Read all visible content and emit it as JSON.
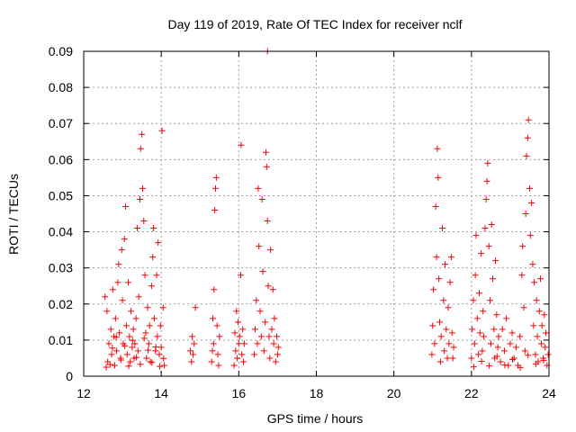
{
  "chart_data": {
    "type": "scatter",
    "title": "Day 119 of 2019, Rate Of TEC Index for receiver nclf",
    "xlabel": "GPS time / hours",
    "ylabel": "ROTI / TECUs",
    "xlim": [
      12,
      24
    ],
    "ylim": [
      0,
      0.09
    ],
    "x_ticks": [
      12,
      14,
      16,
      18,
      20,
      22,
      24
    ],
    "x_tick_labels": [
      "12",
      "14",
      "16",
      "18",
      "20",
      "22",
      "24"
    ],
    "y_ticks": [
      0,
      0.01,
      0.02,
      0.03,
      0.04,
      0.05,
      0.06,
      0.07,
      0.08,
      0.09
    ],
    "y_tick_labels": [
      "0",
      "0.01",
      "0.02",
      "0.03",
      "0.04",
      "0.05",
      "0.06",
      "0.07",
      "0.08",
      "0.09"
    ],
    "grid": true,
    "marker": "+",
    "color": "#ff0000",
    "series": [
      {
        "name": "ROTI",
        "points": [
          [
            12.55,
            0.022
          ],
          [
            12.6,
            0.018
          ],
          [
            12.62,
            0.004
          ],
          [
            12.65,
            0.009
          ],
          [
            12.7,
            0.013
          ],
          [
            12.72,
            0.006
          ],
          [
            12.75,
            0.024
          ],
          [
            12.78,
            0.011
          ],
          [
            12.8,
            0.003
          ],
          [
            12.82,
            0.016
          ],
          [
            12.85,
            0.007
          ],
          [
            12.88,
            0.026
          ],
          [
            12.9,
            0.031
          ],
          [
            12.92,
            0.012
          ],
          [
            12.95,
            0.005
          ],
          [
            12.98,
            0.035
          ],
          [
            13.0,
            0.021
          ],
          [
            13.02,
            0.009
          ],
          [
            13.05,
            0.038
          ],
          [
            13.08,
            0.047
          ],
          [
            13.1,
            0.014
          ],
          [
            13.12,
            0.006
          ],
          [
            13.15,
            0.026
          ],
          [
            13.18,
            0.011
          ],
          [
            13.2,
            0.004
          ],
          [
            13.22,
            0.018
          ],
          [
            13.25,
            0.008
          ],
          [
            13.28,
            0.013
          ],
          [
            13.3,
            0.005
          ],
          [
            13.32,
            0.009
          ],
          [
            13.35,
            0.016
          ],
          [
            13.38,
            0.041
          ],
          [
            13.4,
            0.007
          ],
          [
            13.42,
            0.022
          ],
          [
            13.45,
            0.049
          ],
          [
            13.47,
            0.063
          ],
          [
            13.5,
            0.067
          ],
          [
            13.52,
            0.052
          ],
          [
            13.55,
            0.043
          ],
          [
            13.58,
            0.028
          ],
          [
            13.6,
            0.012
          ],
          [
            13.62,
            0.005
          ],
          [
            13.65,
            0.019
          ],
          [
            13.68,
            0.009
          ],
          [
            13.7,
            0.014
          ],
          [
            13.72,
            0.004
          ],
          [
            13.75,
            0.025
          ],
          [
            13.78,
            0.033
          ],
          [
            13.8,
            0.041
          ],
          [
            13.82,
            0.016
          ],
          [
            13.85,
            0.007
          ],
          [
            13.88,
            0.028
          ],
          [
            13.9,
            0.011
          ],
          [
            13.92,
            0.037
          ],
          [
            13.95,
            0.006
          ],
          [
            13.98,
            0.014
          ],
          [
            14.0,
            0.008
          ],
          [
            14.02,
            0.068
          ],
          [
            14.05,
            0.019
          ],
          [
            14.08,
            0.003
          ],
          [
            12.58,
            0.0025
          ],
          [
            12.68,
            0.0032
          ],
          [
            12.74,
            0.0078
          ],
          [
            12.84,
            0.0108
          ],
          [
            12.96,
            0.0045
          ],
          [
            13.06,
            0.0084
          ],
          [
            13.16,
            0.0028
          ],
          [
            13.26,
            0.0099
          ],
          [
            13.36,
            0.0052
          ],
          [
            13.46,
            0.0033
          ],
          [
            13.56,
            0.0105
          ],
          [
            13.66,
            0.0072
          ],
          [
            13.76,
            0.0038
          ],
          [
            13.86,
            0.0081
          ],
          [
            13.96,
            0.0027
          ],
          [
            14.06,
            0.0049
          ],
          [
            14.75,
            0.007
          ],
          [
            14.78,
            0.004
          ],
          [
            14.8,
            0.011
          ],
          [
            14.82,
            0.006
          ],
          [
            14.85,
            0.009
          ],
          [
            14.88,
            0.019
          ],
          [
            15.3,
            0.004
          ],
          [
            15.32,
            0.007
          ],
          [
            15.33,
            0.016
          ],
          [
            15.35,
            0.009
          ],
          [
            15.36,
            0.024
          ],
          [
            15.38,
            0.046
          ],
          [
            15.4,
            0.052
          ],
          [
            15.42,
            0.055
          ],
          [
            15.44,
            0.014
          ],
          [
            15.46,
            0.006
          ],
          [
            15.48,
            0.003
          ],
          [
            15.5,
            0.011
          ],
          [
            15.88,
            0.003
          ],
          [
            15.9,
            0.012
          ],
          [
            15.92,
            0.007
          ],
          [
            15.94,
            0.018
          ],
          [
            15.96,
            0.005
          ],
          [
            15.98,
            0.015
          ],
          [
            16.0,
            0.009
          ],
          [
            16.02,
            0.011
          ],
          [
            16.05,
            0.028
          ],
          [
            16.06,
            0.064
          ],
          [
            16.08,
            0.006
          ],
          [
            16.1,
            0.013
          ],
          [
            16.12,
            0.004
          ],
          [
            16.14,
            0.009
          ],
          [
            16.4,
            0.006
          ],
          [
            16.42,
            0.013
          ],
          [
            16.45,
            0.021
          ],
          [
            16.48,
            0.009
          ],
          [
            16.5,
            0.052
          ],
          [
            16.52,
            0.036
          ],
          [
            16.55,
            0.018
          ],
          [
            16.58,
            0.011
          ],
          [
            16.6,
            0.049
          ],
          [
            16.62,
            0.029
          ],
          [
            16.65,
            0.007
          ],
          [
            16.68,
            0.015
          ],
          [
            16.7,
            0.062
          ],
          [
            16.72,
            0.058
          ],
          [
            16.74,
            0.043
          ],
          [
            16.76,
            0.025
          ],
          [
            16.78,
            0.011
          ],
          [
            16.8,
            0.005
          ],
          [
            16.82,
            0.035
          ],
          [
            16.85,
            0.013
          ],
          [
            16.88,
            0.024
          ],
          [
            16.9,
            0.009
          ],
          [
            16.92,
            0.016
          ],
          [
            16.95,
            0.004
          ],
          [
            16.98,
            0.011
          ],
          [
            17.0,
            0.006
          ],
          [
            17.02,
            0.008
          ],
          [
            16.74,
            0.09
          ],
          [
            20.98,
            0.006
          ],
          [
            21.0,
            0.014
          ],
          [
            21.02,
            0.024
          ],
          [
            21.05,
            0.009
          ],
          [
            21.08,
            0.047
          ],
          [
            21.1,
            0.033
          ],
          [
            21.12,
            0.063
          ],
          [
            21.14,
            0.055
          ],
          [
            21.16,
            0.027
          ],
          [
            21.18,
            0.015
          ],
          [
            21.2,
            0.004
          ],
          [
            21.22,
            0.011
          ],
          [
            21.25,
            0.041
          ],
          [
            21.28,
            0.021
          ],
          [
            21.3,
            0.007
          ],
          [
            21.32,
            0.031
          ],
          [
            21.35,
            0.013
          ],
          [
            21.38,
            0.005
          ],
          [
            21.4,
            0.019
          ],
          [
            21.42,
            0.009
          ],
          [
            21.45,
            0.026
          ],
          [
            21.48,
            0.033
          ],
          [
            21.5,
            0.012
          ],
          [
            21.52,
            0.005
          ],
          [
            21.54,
            0.008
          ],
          [
            22.0,
            0.005
          ],
          [
            22.02,
            0.013
          ],
          [
            22.05,
            0.021
          ],
          [
            22.08,
            0.009
          ],
          [
            22.1,
            0.028
          ],
          [
            22.12,
            0.039
          ],
          [
            22.15,
            0.016
          ],
          [
            22.18,
            0.006
          ],
          [
            22.2,
            0.023
          ],
          [
            22.22,
            0.012
          ],
          [
            22.25,
            0.034
          ],
          [
            22.28,
            0.007
          ],
          [
            22.3,
            0.018
          ],
          [
            22.32,
            0.011
          ],
          [
            22.35,
            0.041
          ],
          [
            22.38,
            0.049
          ],
          [
            22.4,
            0.054
          ],
          [
            22.42,
            0.059
          ],
          [
            22.45,
            0.036
          ],
          [
            22.48,
            0.021
          ],
          [
            22.5,
            0.009
          ],
          [
            22.52,
            0.042
          ],
          [
            22.55,
            0.027
          ],
          [
            22.58,
            0.013
          ],
          [
            22.6,
            0.005
          ],
          [
            22.62,
            0.032
          ],
          [
            22.65,
            0.017
          ],
          [
            22.68,
            0.008
          ],
          [
            22.7,
            0.011
          ],
          [
            22.75,
            0.004
          ],
          [
            22.8,
            0.013
          ],
          [
            22.85,
            0.007
          ],
          [
            22.9,
            0.016
          ],
          [
            22.95,
            0.003
          ],
          [
            23.0,
            0.009
          ],
          [
            23.05,
            0.012
          ],
          [
            23.1,
            0.005
          ],
          [
            23.15,
            0.008
          ],
          [
            23.2,
            0.003
          ],
          [
            23.25,
            0.011
          ],
          [
            23.3,
            0.028
          ],
          [
            23.32,
            0.036
          ],
          [
            23.35,
            0.019
          ],
          [
            23.38,
            0.007
          ],
          [
            23.4,
            0.045
          ],
          [
            23.42,
            0.061
          ],
          [
            23.45,
            0.066
          ],
          [
            23.47,
            0.071
          ],
          [
            23.5,
            0.052
          ],
          [
            23.52,
            0.039
          ],
          [
            23.55,
            0.048
          ],
          [
            23.58,
            0.031
          ],
          [
            23.6,
            0.014
          ],
          [
            23.62,
            0.026
          ],
          [
            23.65,
            0.006
          ],
          [
            23.68,
            0.021
          ],
          [
            23.7,
            0.011
          ],
          [
            23.72,
            0.004
          ],
          [
            23.75,
            0.018
          ],
          [
            23.78,
            0.027
          ],
          [
            23.8,
            0.009
          ],
          [
            23.82,
            0.014
          ],
          [
            23.85,
            0.005
          ],
          [
            23.88,
            0.017
          ],
          [
            23.9,
            0.008
          ],
          [
            23.92,
            0.012
          ],
          [
            23.95,
            0.003
          ],
          [
            23.98,
            0.006
          ],
          [
            22.06,
            0.0026
          ],
          [
            22.26,
            0.0041
          ],
          [
            22.46,
            0.0029
          ],
          [
            22.66,
            0.0055
          ],
          [
            22.86,
            0.0031
          ],
          [
            23.06,
            0.0046
          ],
          [
            23.26,
            0.0024
          ],
          [
            23.46,
            0.0058
          ],
          [
            23.66,
            0.0034
          ],
          [
            23.86,
            0.0044
          ]
        ]
      }
    ]
  }
}
